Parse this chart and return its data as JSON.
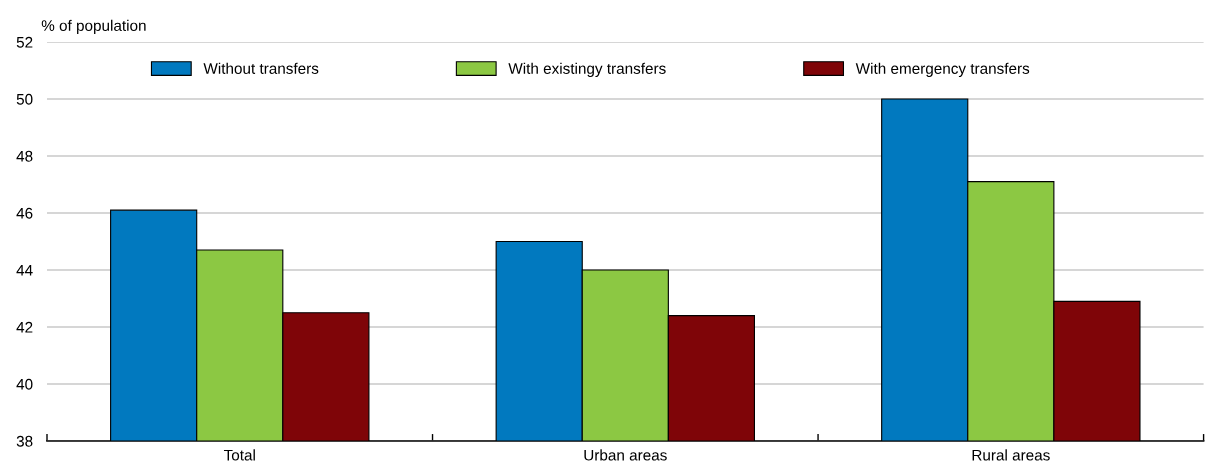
{
  "chart_data": {
    "type": "bar",
    "ylabel": "% of population",
    "categories": [
      "Total",
      "Urban areas",
      "Rural areas"
    ],
    "series": [
      {
        "name": "Without transfers",
        "color": "#0179bf",
        "values": [
          46.1,
          45.0,
          50.0
        ]
      },
      {
        "name": "With existingy transfers",
        "color": "#8cc843",
        "values": [
          44.7,
          44.0,
          47.1
        ]
      },
      {
        "name": "With emergency transfers",
        "color": "#7f0508",
        "values": [
          42.5,
          42.4,
          42.9
        ]
      }
    ],
    "ylim": [
      38,
      52
    ],
    "yticks": [
      38,
      40,
      42,
      44,
      46,
      48,
      50,
      52
    ],
    "grid": "y",
    "legend": "top"
  }
}
